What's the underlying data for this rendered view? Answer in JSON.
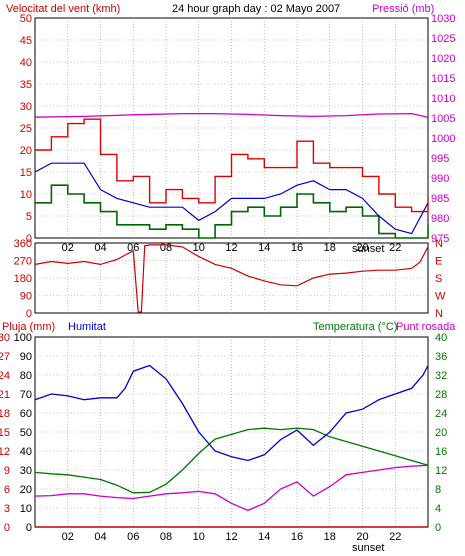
{
  "header": {
    "wind_title": "Velocitat del vent (kmh)",
    "graph_title": "24 hour graph day : 02 Mayo 2007",
    "pressure_title": "Pressió (mb)",
    "rain_title": "Pluja (mm)",
    "humidity_title": "Humitat",
    "temp_title": "Temperatura (°C)",
    "dew_title": "Punt rosada"
  },
  "colors": {
    "wind": "#dd0000",
    "avg_wind": "#0000cc",
    "gust_low": "#006600",
    "pressure": "#cc00cc",
    "direction": "#cc0000",
    "humidity": "#0000cc",
    "temperature": "#007700",
    "dewpoint": "#cc00cc",
    "rain": "#cc0000",
    "grid": "#999999"
  },
  "chart_data": [
    {
      "type": "line",
      "name": "wind-pressure",
      "x_ticks": [
        "02",
        "04",
        "06",
        "08",
        "10",
        "12",
        "14",
        "16",
        "18",
        "20",
        "22"
      ],
      "sunset_label": "sunset",
      "left_axis": {
        "ylim": [
          0,
          50
        ],
        "ticks": [
          "0",
          "5",
          "10",
          "15",
          "20",
          "25",
          "30",
          "35",
          "40",
          "45",
          "50"
        ]
      },
      "right_axis": {
        "ylim": [
          975,
          1030
        ],
        "ticks": [
          "975",
          "980",
          "985",
          "990",
          "995",
          "1000",
          "1005",
          "1010",
          "1015",
          "1020",
          "1025",
          "1030"
        ]
      },
      "pressure": {
        "x": [
          0,
          3,
          6,
          9,
          11,
          12,
          13,
          15,
          17,
          19,
          21,
          23,
          24
        ],
        "y": [
          1005.2,
          1005.4,
          1005.8,
          1006.1,
          1006.1,
          1006.0,
          1005.9,
          1005.6,
          1005.4,
          1005.6,
          1006.0,
          1006.1,
          1005.2
        ]
      },
      "wind_gust": {
        "x": [
          0,
          1,
          2,
          3,
          4,
          5,
          6,
          7,
          8,
          9,
          10,
          11,
          12,
          13,
          14,
          15,
          16,
          17,
          18,
          19,
          20,
          21,
          22,
          23,
          24
        ],
        "y": [
          20,
          23,
          26,
          27,
          19,
          13,
          14,
          8,
          11,
          9,
          8,
          14,
          19,
          18,
          16,
          16,
          22,
          17,
          16,
          16,
          14,
          10,
          7,
          6,
          9
        ]
      },
      "wind_avg": {
        "x": [
          0,
          1,
          2,
          3,
          4,
          5,
          6,
          7,
          8,
          9,
          10,
          11,
          12,
          13,
          14,
          15,
          16,
          17,
          18,
          19,
          20,
          21,
          22,
          23,
          24
        ],
        "y": [
          15,
          17,
          17,
          17,
          11,
          9,
          8,
          7,
          7,
          7,
          4,
          6,
          9,
          9,
          9,
          10,
          12,
          13,
          11,
          11,
          9,
          5,
          2,
          1,
          8
        ]
      },
      "wind_low": {
        "x": [
          0,
          1,
          2,
          3,
          4,
          5,
          6,
          7,
          8,
          9,
          10,
          11,
          12,
          13,
          14,
          15,
          16,
          17,
          18,
          19,
          20,
          21,
          22,
          23,
          24
        ],
        "y": [
          8,
          12,
          10,
          8,
          6,
          3,
          3,
          2,
          3,
          2,
          0,
          3,
          6,
          7,
          5,
          7,
          10,
          8,
          6,
          7,
          5,
          1,
          0,
          0,
          3
        ]
      }
    },
    {
      "type": "line",
      "name": "wind-direction",
      "ylim": [
        0,
        360
      ],
      "left_ticks": [
        "0",
        "90",
        "180",
        "270",
        "360"
      ],
      "right_labels": [
        "N",
        "W",
        "S",
        "E",
        "N"
      ],
      "x": [
        0,
        1,
        2,
        3,
        4,
        5,
        6,
        6.3,
        6.5,
        6.7,
        7,
        8,
        9,
        10,
        11,
        12,
        13,
        14,
        15,
        16,
        17,
        18,
        19,
        20,
        21,
        22,
        23,
        23.5,
        24
      ],
      "y": [
        250,
        265,
        255,
        265,
        250,
        275,
        320,
        5,
        5,
        345,
        350,
        350,
        340,
        290,
        250,
        230,
        190,
        165,
        145,
        140,
        180,
        200,
        205,
        215,
        220,
        220,
        230,
        260,
        340
      ]
    },
    {
      "type": "line",
      "name": "humidity-temperature",
      "x_ticks": [
        "02",
        "04",
        "06",
        "08",
        "10",
        "12",
        "14",
        "16",
        "18",
        "20",
        "22"
      ],
      "sunset_label": "sunset",
      "rain_axis": {
        "ylim": [
          0,
          30
        ],
        "ticks": [
          "0",
          "3",
          "6",
          "9",
          "12",
          "15",
          "18",
          "21",
          "24",
          "27",
          "30"
        ]
      },
      "humidity_axis": {
        "ylim": [
          0,
          100
        ],
        "ticks": [
          "0",
          "10",
          "20",
          "30",
          "40",
          "50",
          "60",
          "70",
          "80",
          "90",
          "100"
        ]
      },
      "temp_axis": {
        "ylim": [
          0,
          40
        ],
        "ticks": [
          "0",
          "4",
          "8",
          "12",
          "16",
          "20",
          "24",
          "28",
          "32",
          "36",
          "40"
        ]
      },
      "humidity": {
        "x": [
          0,
          1,
          2,
          3,
          4,
          5,
          5.5,
          6,
          7,
          8,
          9,
          10,
          11,
          12,
          13,
          14,
          15,
          16,
          17,
          18,
          19,
          20,
          21,
          22,
          23,
          23.7,
          24
        ],
        "y": [
          67,
          70,
          69,
          67,
          68,
          68,
          73,
          82,
          85,
          78,
          65,
          50,
          40,
          37,
          35,
          38,
          46,
          51,
          43,
          50,
          60,
          62,
          67,
          70,
          73,
          80,
          85
        ]
      },
      "temperature": {
        "x": [
          0,
          1,
          2,
          3,
          4,
          5,
          6,
          7,
          8,
          9,
          10,
          11,
          12,
          13,
          14,
          15,
          16,
          17,
          18,
          19,
          20,
          21,
          22,
          23,
          24
        ],
        "y": [
          11.5,
          11.2,
          11.0,
          10.5,
          10.0,
          8.8,
          7.2,
          7.3,
          9.0,
          12.0,
          15.5,
          18.5,
          19.5,
          20.5,
          20.8,
          20.5,
          20.8,
          20.5,
          19.0,
          18.0,
          17.0,
          16.0,
          15.0,
          14.0,
          13.0
        ]
      },
      "dewpoint": {
        "x": [
          0,
          1,
          2,
          3,
          4,
          5,
          6,
          7,
          8,
          9,
          10,
          11,
          12,
          13,
          14,
          15,
          16,
          17,
          18,
          19,
          20,
          21,
          22,
          23,
          24
        ],
        "y": [
          6.5,
          6.6,
          7.0,
          7.0,
          6.5,
          6.2,
          6.0,
          6.5,
          7.0,
          7.2,
          7.5,
          7.0,
          5.0,
          3.5,
          5.0,
          8.0,
          9.5,
          6.5,
          8.5,
          11.0,
          11.5,
          12.0,
          12.5,
          12.8,
          13.0
        ]
      },
      "rain": {
        "x": [
          0,
          24
        ],
        "y": [
          0,
          0
        ]
      }
    }
  ]
}
